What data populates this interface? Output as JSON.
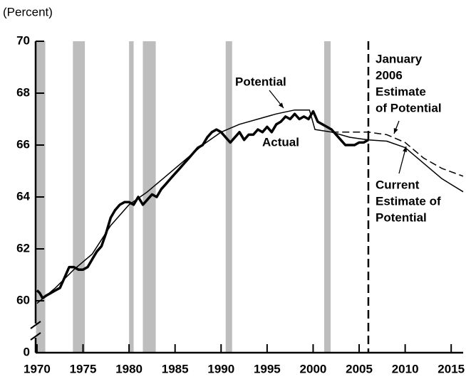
{
  "chart_data": {
    "type": "line",
    "unit_label": "(Percent)",
    "xlim": [
      1969.85,
      2016.3
    ],
    "xticks": [
      1970,
      1975,
      1980,
      1985,
      1990,
      1995,
      2000,
      2005,
      2010,
      2015
    ],
    "ylim": [
      58,
      70
    ],
    "yticks": [
      0,
      60,
      62,
      64,
      66,
      68,
      70
    ],
    "axis_break": true,
    "shaded_periods": [
      [
        1969.9,
        1970.9
      ],
      [
        1973.9,
        1975.2
      ],
      [
        1980.0,
        1980.5
      ],
      [
        1981.5,
        1982.9
      ],
      [
        1990.5,
        1991.2
      ],
      [
        2001.2,
        2001.9
      ]
    ],
    "shade_color": "#bdbdbd",
    "vertical_line_x": 2006,
    "series": [
      {
        "name": "Actual",
        "color": "#000000",
        "style": "thick",
        "x": [
          1970,
          1970.3,
          1970.6,
          1971,
          1971.5,
          1972,
          1972.5,
          1973,
          1973.5,
          1974,
          1974.5,
          1975,
          1975.5,
          1976,
          1976.5,
          1977,
          1977.5,
          1978,
          1978.5,
          1979,
          1979.5,
          1980,
          1980.5,
          1981,
          1981.5,
          1982,
          1982.5,
          1983,
          1983.5,
          1984,
          1984.5,
          1985,
          1985.5,
          1986,
          1986.5,
          1987,
          1987.5,
          1988,
          1988.5,
          1989,
          1989.5,
          1990,
          1990.5,
          1991,
          1991.5,
          1992,
          1992.5,
          1993,
          1993.5,
          1994,
          1994.5,
          1995,
          1995.5,
          1996,
          1996.5,
          1997,
          1997.5,
          1998,
          1998.5,
          1999,
          1999.5,
          2000,
          2000.5,
          2001,
          2001.5,
          2002,
          2002.5,
          2003,
          2003.5,
          2004,
          2004.5,
          2005,
          2005.5,
          2006
        ],
        "values": [
          60.4,
          60.3,
          60.1,
          60.2,
          60.3,
          60.4,
          60.5,
          60.9,
          61.3,
          61.3,
          61.2,
          61.2,
          61.3,
          61.6,
          61.9,
          62.1,
          62.6,
          63.2,
          63.5,
          63.7,
          63.8,
          63.8,
          63.7,
          64.0,
          63.7,
          63.9,
          64.1,
          64.0,
          64.3,
          64.5,
          64.7,
          64.9,
          65.1,
          65.3,
          65.5,
          65.7,
          65.9,
          66.0,
          66.3,
          66.5,
          66.6,
          66.5,
          66.3,
          66.1,
          66.3,
          66.5,
          66.2,
          66.4,
          66.4,
          66.6,
          66.5,
          66.7,
          66.5,
          66.8,
          66.9,
          67.1,
          67.0,
          67.2,
          67.0,
          67.1,
          67.0,
          67.3,
          66.9,
          66.8,
          66.7,
          66.6,
          66.4,
          66.2,
          66.0,
          66.0,
          66.0,
          66.1,
          66.1,
          66.2
        ]
      },
      {
        "name": "Potential",
        "color": "#000000",
        "style": "thin",
        "x": [
          1970,
          1972,
          1974,
          1976,
          1978,
          1980,
          1982,
          1984,
          1986,
          1988,
          1990,
          1992,
          1994,
          1996,
          1998,
          1999.6,
          2000.2,
          2002,
          2004,
          2006,
          2008,
          2010,
          2012,
          2014,
          2016.3
        ],
        "values": [
          59.9,
          60.5,
          61.2,
          61.8,
          62.9,
          63.7,
          64.2,
          64.8,
          65.4,
          66.0,
          66.5,
          66.8,
          67.0,
          67.2,
          67.35,
          67.35,
          66.6,
          66.5,
          66.3,
          66.2,
          66.15,
          65.9,
          65.3,
          64.7,
          64.2
        ]
      },
      {
        "name": "January 2006 Estimate of Potential",
        "color": "#000000",
        "style": "dashed",
        "x": [
          2002,
          2004,
          2006,
          2008,
          2010,
          2012,
          2014,
          2016.3
        ],
        "values": [
          66.5,
          66.5,
          66.5,
          66.4,
          66.1,
          65.5,
          65.1,
          64.8
        ]
      }
    ],
    "annotations": [
      {
        "lines": [
          "Potential"
        ]
      },
      {
        "lines": [
          "Actual"
        ]
      },
      {
        "lines": [
          "January",
          "2006",
          "Estimate",
          "of Potential"
        ]
      },
      {
        "lines": [
          "Current",
          "Estimate of",
          "Potential"
        ]
      }
    ]
  }
}
